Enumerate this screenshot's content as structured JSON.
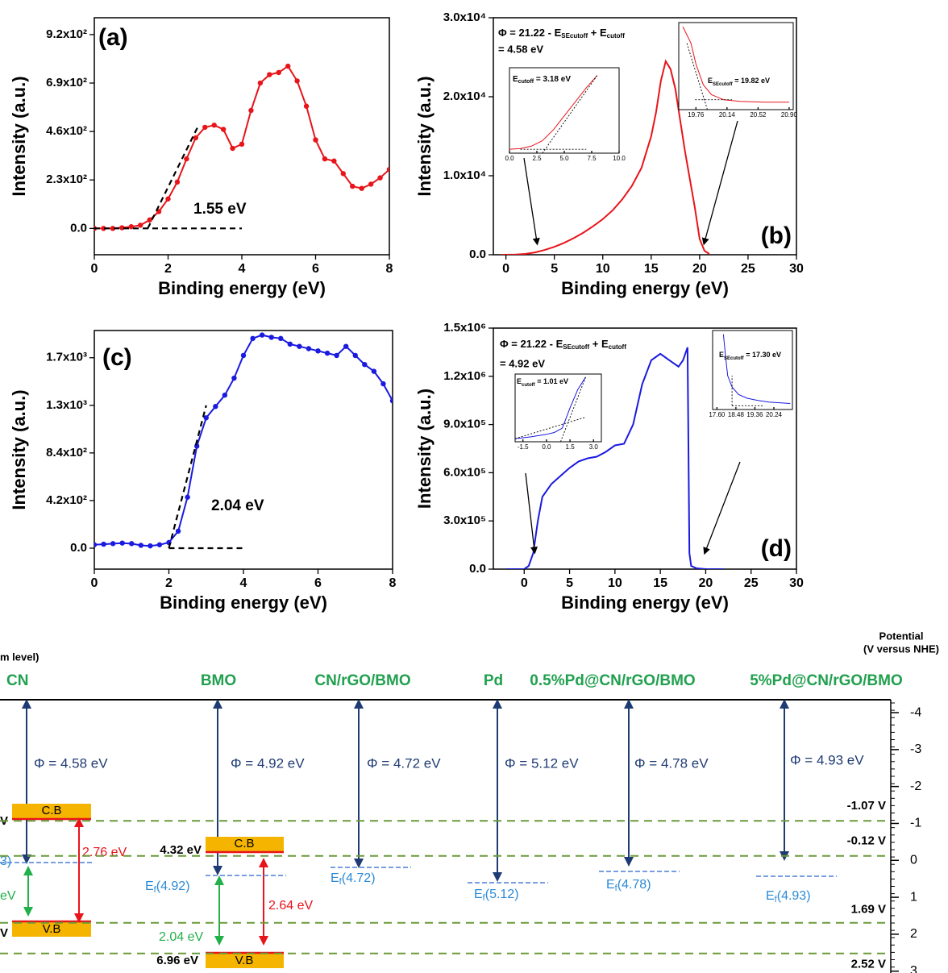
{
  "chart_data": [
    {
      "type": "line",
      "label": "(a)",
      "xlabel": "Binding energy (eV)",
      "ylabel": "Intensity (a.u.)",
      "xlim": [
        0,
        8
      ],
      "ylim": [
        -125,
        1000
      ],
      "xticks": [
        0,
        2,
        4,
        6,
        8
      ],
      "yticks": [
        {
          "value": 0,
          "label": "0.0"
        },
        {
          "value": 230,
          "label": "2.3x10²"
        },
        {
          "value": 460,
          "label": "4.6x10²"
        },
        {
          "value": 690,
          "label": "6.9x10²"
        },
        {
          "value": 920,
          "label": "9.2x10²"
        }
      ],
      "markers": true,
      "series": [
        {
          "color": "#e8141a",
          "x": [
            0,
            0.25,
            0.5,
            0.75,
            1,
            1.25,
            1.5,
            1.75,
            2,
            2.25,
            2.5,
            2.75,
            3,
            3.25,
            3.5,
            3.75,
            4,
            4.25,
            4.5,
            4.75,
            5,
            5.25,
            5.5,
            5.75,
            6,
            6.25,
            6.5,
            6.75,
            7,
            7.25,
            7.5,
            7.75,
            8
          ],
          "values": [
            0,
            0,
            0,
            3,
            8,
            15,
            40,
            80,
            140,
            220,
            330,
            430,
            480,
            490,
            470,
            380,
            400,
            560,
            690,
            730,
            740,
            770,
            700,
            580,
            420,
            330,
            320,
            260,
            200,
            190,
            210,
            240,
            280
          ]
        },
        {
          "color": "#000000",
          "style": "dashed",
          "x": [
            0,
            4
          ],
          "values": [
            0,
            0
          ]
        },
        {
          "color": "#000000",
          "style": "dashed",
          "x": [
            1.45,
            2.8
          ],
          "values": [
            0,
            480
          ]
        }
      ],
      "annotations": [
        {
          "text": "(a)"
        },
        {
          "text": "1.55 eV"
        }
      ]
    },
    {
      "type": "line",
      "label": "(b)",
      "xlabel": "Binding energy (eV)",
      "ylabel": "Intensity (a.u.)",
      "xlim": [
        -1.3,
        30
      ],
      "ylim": [
        0,
        30000
      ],
      "xticks": [
        0,
        5,
        10,
        15,
        20,
        25,
        30
      ],
      "yticks": [
        {
          "value": 0,
          "label": "0.0"
        },
        {
          "value": 10000,
          "label": "1.0x10⁴"
        },
        {
          "value": 20000,
          "label": "2.0x10⁴"
        },
        {
          "value": 30000,
          "label": "3.0x10⁴"
        }
      ],
      "series": [
        {
          "color": "#e8141a",
          "x": [
            -0.5,
            1,
            2,
            3,
            4,
            5,
            6,
            7,
            8,
            9,
            10,
            11,
            12,
            13,
            14,
            15,
            15.5,
            16,
            16.5,
            17,
            17.5,
            18,
            18.5,
            19,
            19.5,
            20,
            20.5,
            21
          ],
          "values": [
            0,
            20,
            100,
            300,
            600,
            1000,
            1500,
            2100,
            2800,
            3600,
            4500,
            5600,
            7000,
            8700,
            11000,
            15000,
            18000,
            22000,
            24500,
            23500,
            21000,
            17000,
            13000,
            9500,
            6000,
            2000,
            500,
            100
          ]
        }
      ],
      "annotations": [
        {
          "text": "(b)"
        },
        {
          "parts": [
            {
              "text": "Φ = 21.22 - E"
            },
            {
              "text": "SEcutoff",
              "sub": true
            },
            {
              "text": " + E"
            },
            {
              "text": "cutoff",
              "sub": true
            }
          ]
        },
        {
          "text": "= 4.58 eV"
        }
      ]
    },
    {
      "type": "line",
      "inset": true,
      "xlim": [
        0,
        10
      ],
      "ylim": [
        0,
        1.1
      ],
      "xticks": [
        {
          "value": 0,
          "label": "0.0"
        },
        {
          "value": 2.5,
          "label": "2.5"
        },
        {
          "value": 5,
          "label": "5.0"
        },
        {
          "value": 7.5,
          "label": "7.5"
        },
        {
          "value": 10,
          "label": "10.0"
        }
      ],
      "series": [
        {
          "color": "#e8141a",
          "x": [
            0,
            1,
            2,
            3,
            4,
            5,
            6,
            7,
            8
          ],
          "values": [
            0.05,
            0.06,
            0.09,
            0.16,
            0.3,
            0.48,
            0.66,
            0.84,
            1.0
          ]
        },
        {
          "color": "#000000",
          "style": "dashed",
          "x": [
            1,
            7
          ],
          "values": [
            0.05,
            0.05
          ]
        },
        {
          "color": "#000000",
          "style": "dashed",
          "x": [
            3,
            8
          ],
          "values": [
            0,
            1
          ]
        }
      ],
      "annotations": [
        {
          "parts": [
            {
              "text": "E"
            },
            {
              "text": "cutoff",
              "sub": true
            },
            {
              "text": " = 3.18 eV"
            }
          ]
        }
      ]
    },
    {
      "type": "line",
      "inset": true,
      "xlim": [
        19.55,
        20.95
      ],
      "ylim": [
        0,
        1.05
      ],
      "xticks": [
        19.76,
        20.14,
        20.52,
        {
          "value": 20.9,
          "label": "20.90"
        }
      ],
      "series": [
        {
          "color": "#e8141a",
          "x": [
            19.6,
            19.7,
            19.76,
            19.85,
            19.95,
            20.1,
            20.3,
            20.6,
            20.9
          ],
          "values": [
            1.0,
            0.8,
            0.55,
            0.3,
            0.18,
            0.12,
            0.1,
            0.09,
            0.09
          ]
        },
        {
          "color": "#000000",
          "style": "dashed",
          "x": [
            19.75,
            20.2
          ],
          "values": [
            0.12,
            0.12
          ]
        },
        {
          "color": "#000000",
          "style": "dashed",
          "x": [
            19.65,
            19.9
          ],
          "values": [
            0.8,
            0
          ]
        }
      ],
      "annotations": [
        {
          "parts": [
            {
              "text": "E"
            },
            {
              "text": "SEcutoff",
              "sub": true
            },
            {
              "text": " = 19.82 eV"
            }
          ]
        }
      ]
    },
    {
      "type": "line",
      "label": "(c)",
      "xlabel": "Binding energy (eV)",
      "ylabel": "Intensity (a.u.)",
      "xlim": [
        0,
        8
      ],
      "ylim": [
        -185,
        1920
      ],
      "xticks": [
        0,
        2,
        4,
        6,
        8
      ],
      "yticks": [
        {
          "value": 0,
          "label": "0.0"
        },
        {
          "value": 420,
          "label": "4.2x10²"
        },
        {
          "value": 840,
          "label": "8.4x10²"
        },
        {
          "value": 1260,
          "label": "1.3x10³"
        },
        {
          "value": 1680,
          "label": "1.7x10³"
        }
      ],
      "markers": true,
      "series": [
        {
          "color": "#1a1ae0",
          "x": [
            0,
            0.25,
            0.5,
            0.75,
            1,
            1.25,
            1.5,
            1.75,
            2,
            2.25,
            2.5,
            2.75,
            3,
            3.25,
            3.5,
            3.75,
            4,
            4.25,
            4.5,
            4.75,
            5,
            5.25,
            5.5,
            5.75,
            6,
            6.25,
            6.5,
            6.75,
            7,
            7.25,
            7.5,
            7.75,
            8
          ],
          "values": [
            30,
            35,
            40,
            45,
            40,
            25,
            20,
            30,
            50,
            150,
            450,
            900,
            1150,
            1250,
            1350,
            1500,
            1700,
            1850,
            1880,
            1860,
            1850,
            1800,
            1780,
            1760,
            1740,
            1720,
            1700,
            1780,
            1700,
            1620,
            1560,
            1450,
            1300
          ]
        },
        {
          "color": "#000000",
          "style": "dashed",
          "x": [
            2,
            4
          ],
          "values": [
            0,
            0
          ]
        },
        {
          "color": "#000000",
          "style": "dashed",
          "x": [
            2,
            3
          ],
          "values": [
            0,
            1260
          ]
        }
      ],
      "annotations": [
        {
          "text": "(c)"
        },
        {
          "text": "2.04 eV"
        }
      ]
    },
    {
      "type": "line",
      "label": "(d)",
      "xlabel": "Binding energy (eV)",
      "ylabel": "Intensity (a.u.)",
      "xlim": [
        -3.4,
        30
      ],
      "ylim": [
        0,
        1500000
      ],
      "xticks": [
        0,
        5,
        10,
        15,
        20,
        25,
        30
      ],
      "yticks": [
        {
          "value": 0,
          "label": "0.0"
        },
        {
          "value": 300000,
          "label": "3.0x10⁵"
        },
        {
          "value": 600000,
          "label": "6.0x10⁵"
        },
        {
          "value": 900000,
          "label": "9.0x10⁵"
        },
        {
          "value": 1200000,
          "label": "1.2x10⁶"
        },
        {
          "value": 1500000,
          "label": "1.5x10⁶"
        }
      ],
      "series": [
        {
          "color": "#1a1ae0",
          "x": [
            -2,
            0,
            0.5,
            1,
            1.5,
            2,
            3,
            4,
            5,
            6,
            7,
            8,
            9,
            10,
            11,
            12,
            13,
            14,
            15,
            16,
            17,
            17.5,
            18,
            18.2,
            18.4,
            19,
            20,
            22
          ],
          "values": [
            0,
            0,
            20000,
            100000,
            300000,
            450000,
            530000,
            580000,
            630000,
            670000,
            690000,
            700000,
            730000,
            770000,
            780000,
            900000,
            1150000,
            1300000,
            1340000,
            1300000,
            1260000,
            1300000,
            1380000,
            100000,
            20000,
            5000,
            0,
            0
          ]
        }
      ],
      "annotations": [
        {
          "text": "(d)"
        },
        {
          "parts": [
            {
              "text": "Φ = 21.22 - E"
            },
            {
              "text": "SEcutoff",
              "sub": true
            },
            {
              "text": " + E"
            },
            {
              "text": "cutoff",
              "sub": true
            }
          ]
        },
        {
          "text": "= 4.92 eV"
        }
      ]
    },
    {
      "type": "line",
      "inset": true,
      "xlim": [
        -2,
        3.5
      ],
      "ylim": [
        0,
        1.1
      ],
      "xticks": [
        -1.5,
        {
          "value": 0,
          "label": "0.0"
        },
        1.5,
        {
          "value": 3,
          "label": "3.0"
        }
      ],
      "series": [
        {
          "color": "#1a1ae0",
          "x": [
            -2,
            -1,
            0,
            0.5,
            1,
            1.2,
            1.5,
            2,
            2.5
          ],
          "values": [
            0.05,
            0.08,
            0.12,
            0.15,
            0.22,
            0.35,
            0.55,
            0.85,
            1.05
          ]
        },
        {
          "color": "#000000",
          "style": "dashed",
          "x": [
            -2,
            2.5
          ],
          "values": [
            0.05,
            0.4
          ]
        },
        {
          "color": "#000000",
          "style": "dashed",
          "x": [
            0.9,
            2.5
          ],
          "values": [
            0,
            1.05
          ]
        }
      ],
      "annotations": [
        {
          "parts": [
            {
              "text": "E"
            },
            {
              "text": "cutoff",
              "sub": true
            },
            {
              "text": " = 1.01 eV"
            }
          ]
        }
      ]
    },
    {
      "type": "line",
      "inset": true,
      "xlim": [
        17.4,
        21.1
      ],
      "ylim": [
        0,
        1.05
      ],
      "xticks": [
        {
          "value": 17.6,
          "label": "17.60"
        },
        18.48,
        19.36,
        20.24
      ],
      "series": [
        {
          "color": "#1a1ae0",
          "x": [
            17.9,
            18,
            18.1,
            18.3,
            18.6,
            19,
            19.5,
            20,
            20.5,
            21
          ],
          "values": [
            1.0,
            0.7,
            0.45,
            0.3,
            0.2,
            0.15,
            0.12,
            0.1,
            0.09,
            0.08
          ]
        },
        {
          "color": "#000000",
          "style": "dashed",
          "x": [
            18.3,
            19.8
          ],
          "values": [
            0.05,
            0.05
          ]
        },
        {
          "color": "#000000",
          "style": "dashed",
          "x": [
            18.3,
            18.3
          ],
          "values": [
            0.05,
            0.45
          ]
        }
      ],
      "annotations": [
        {
          "parts": [
            {
              "text": "E"
            },
            {
              "text": "SEcutoff",
              "sub": true
            },
            {
              "text": " = 17.30 eV"
            }
          ]
        }
      ]
    }
  ],
  "diagram": {
    "header": "m level)",
    "axis_title": [
      "Potential",
      "(V versus NHE)"
    ],
    "ylim": [
      -4.35,
      3.05
    ],
    "yticks": [
      -4,
      -3,
      -2,
      -1,
      0,
      1,
      2,
      3
    ],
    "levels": [
      {
        "value": -1.07,
        "label": "-1.07 V"
      },
      {
        "value": -0.12,
        "label": "-0.12 V"
      },
      {
        "value": 1.69,
        "label": "1.69 V"
      },
      {
        "value": 2.52,
        "label": "2.52 V"
      }
    ],
    "materials": [
      {
        "name": "CN",
        "phi": "Φ = 4.58 eV"
      },
      {
        "name": "BMO",
        "phi": "Φ = 4.92 eV"
      },
      {
        "name": "CN/rGO/BMO",
        "phi": "Φ = 4.72 eV"
      },
      {
        "name": "Pd",
        "phi": "Φ = 5.12 eV"
      },
      {
        "name": "0.5%Pd@CN/rGO/BMO",
        "phi": "Φ = 4.78 eV"
      },
      {
        "name": "5%Pd@CN/rGO/BMO",
        "phi": "Φ = 4.93 eV"
      }
    ],
    "cn": {
      "cb": "C.B",
      "vb": "V.B",
      "gap": "2.76 eV",
      "vgap": "eV",
      "ef": "3)",
      "cb_energy": "V",
      "vb_energy": "V"
    },
    "bmo": {
      "cb": "C.B",
      "vb": "V.B",
      "gap": "2.64 eV",
      "vgap": "2.04 eV",
      "cb_energy": "4.32 eV",
      "vb_energy": "6.96 eV"
    },
    "fermi": [
      {
        "main": "E",
        "sub": "f",
        "rest": "(4.92)"
      },
      {
        "main": "E",
        "sub": "f",
        "rest": "(4.72)"
      },
      {
        "main": "E",
        "sub": "f",
        "rest": "(5.12)"
      },
      {
        "main": "E",
        "sub": "f",
        "rest": "(4.78)"
      },
      {
        "main": "E",
        "sub": "f",
        "rest": "(4.93)"
      }
    ]
  }
}
